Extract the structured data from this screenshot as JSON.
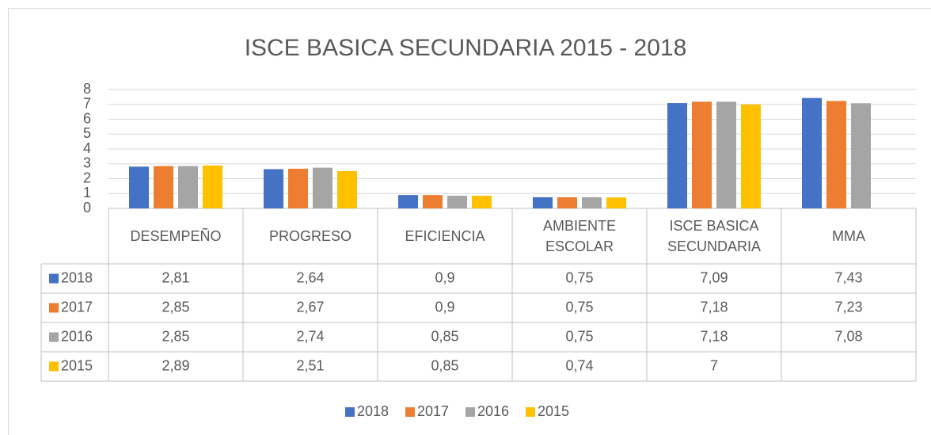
{
  "chart_data": {
    "type": "bar",
    "title": "ISCE BASICA SECUNDARIA 2015  -  2018",
    "categories": [
      "DESEMPEÑO",
      "PROGRESO",
      "EFICIENCIA",
      "AMBIENTE ESCOLAR",
      "ISCE BASICA SECUNDARIA",
      "MMA"
    ],
    "series": [
      {
        "name": "2018",
        "color": "#4472c4",
        "values": [
          2.81,
          2.64,
          0.9,
          0.75,
          7.09,
          7.43
        ],
        "value_labels": [
          "2,81",
          "2,64",
          "0,9",
          "0,75",
          "7,09",
          "7,43"
        ]
      },
      {
        "name": "2017",
        "color": "#ed7d31",
        "values": [
          2.85,
          2.67,
          0.9,
          0.75,
          7.18,
          7.23
        ],
        "value_labels": [
          "2,85",
          "2,67",
          "0,9",
          "0,75",
          "7,18",
          "7,23"
        ]
      },
      {
        "name": "2016",
        "color": "#a5a5a5",
        "values": [
          2.85,
          2.74,
          0.85,
          0.75,
          7.18,
          7.08
        ],
        "value_labels": [
          "2,85",
          "2,74",
          "0,85",
          "0,75",
          "7,18",
          "7,08"
        ]
      },
      {
        "name": "2015",
        "color": "#ffc000",
        "values": [
          2.89,
          2.51,
          0.85,
          0.74,
          7,
          null
        ],
        "value_labels": [
          "2,89",
          "2,51",
          "0,85",
          "0,74",
          "7",
          null
        ]
      }
    ],
    "ylim": [
      0,
      8
    ],
    "yticks": [
      0,
      1,
      2,
      3,
      4,
      5,
      6,
      7,
      8
    ],
    "grid": true,
    "legend": "bottom"
  }
}
